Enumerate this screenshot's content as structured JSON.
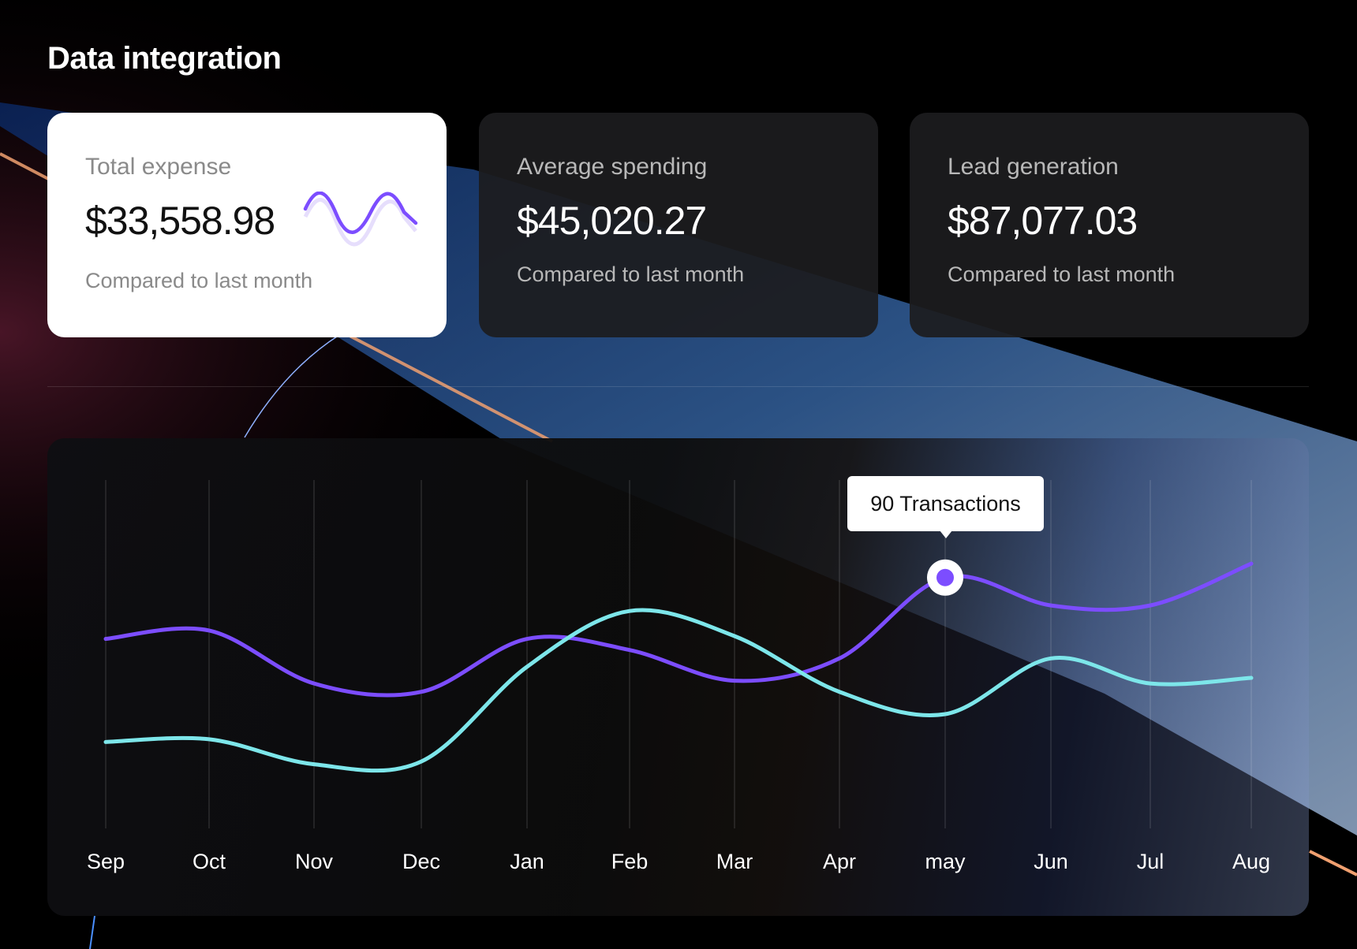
{
  "title": "Data integration",
  "cards": [
    {
      "label": "Total  expense",
      "value": "$33,558.98",
      "compare": "Compared to last month",
      "icon": "wave-sparkline-icon"
    },
    {
      "label": "Average spending",
      "value": "$45,020.27",
      "compare": "Compared to last month"
    },
    {
      "label": "Lead generation",
      "value": "$87,077.03",
      "compare": "Compared to last month"
    }
  ],
  "colors": {
    "purple": "#7c4dff",
    "cyan": "#7de6ea",
    "background": "#000000"
  },
  "chart_data": {
    "type": "line",
    "categories": [
      "Sep",
      "Oct",
      "Nov",
      "Dec",
      "Jan",
      "Feb",
      "Mar",
      "Apr",
      "may",
      "Jun",
      "Jul",
      "Aug"
    ],
    "series": [
      {
        "color": "#7c4dff",
        "values": [
          68,
          71,
          52,
          49,
          68,
          64,
          53,
          61,
          90,
          80,
          80,
          95
        ]
      },
      {
        "color": "#7de6ea",
        "values": [
          31,
          32,
          23,
          24,
          58,
          78,
          69,
          49,
          41,
          61,
          52,
          54
        ]
      }
    ],
    "ylim": [
      0,
      125
    ],
    "grid": "vertical",
    "tooltip": {
      "category": "may",
      "text": "90 Transactions"
    }
  }
}
